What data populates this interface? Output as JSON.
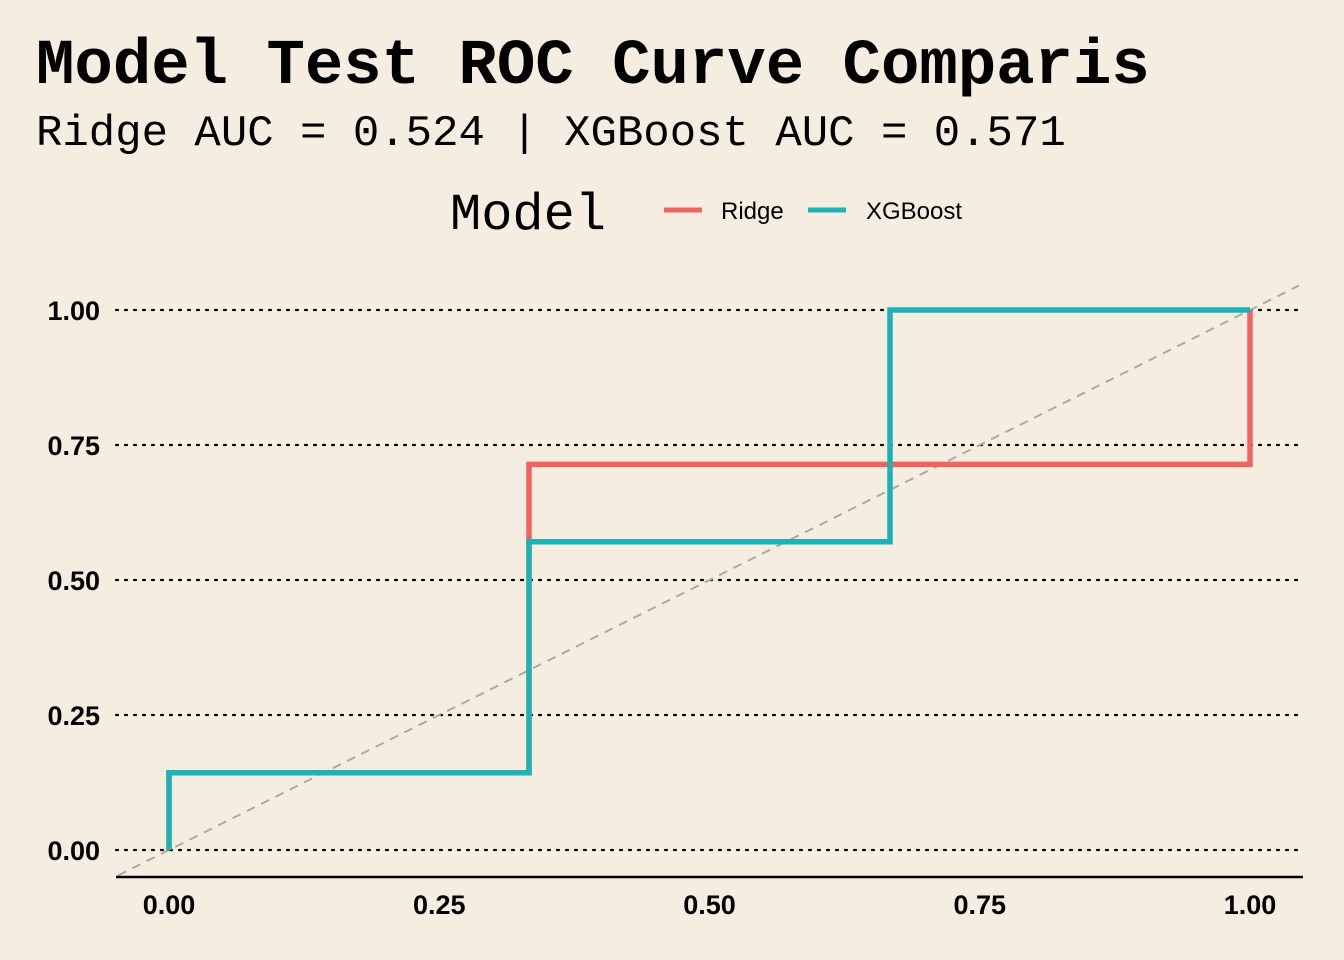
{
  "chart_data": {
    "type": "line",
    "title": "Model Test ROC Curve Comparis",
    "subtitle": "Ridge AUC = 0.524 | XGBoost AUC = 0.571",
    "legend": {
      "title": "Model",
      "position": "top",
      "entries": [
        "Ridge",
        "XGBoost"
      ]
    },
    "xlabel": "",
    "ylabel": "",
    "xlim": [
      0,
      1
    ],
    "ylim": [
      0,
      1
    ],
    "x_ticks": [
      "0.00",
      "0.25",
      "0.50",
      "0.75",
      "1.00"
    ],
    "y_ticks": [
      "0.00",
      "0.25",
      "0.50",
      "0.75",
      "1.00"
    ],
    "grid": "horizontal dotted",
    "diagonal_reference": true,
    "series": [
      {
        "name": "Ridge",
        "color": "#f0645f",
        "x": [
          0,
          0,
          0.333,
          0.333,
          0.333,
          1,
          1
        ],
        "y": [
          0,
          0.143,
          0.143,
          0.571,
          0.714,
          0.714,
          1
        ]
      },
      {
        "name": "XGBoost",
        "color": "#1cb2b6",
        "x": [
          0,
          0,
          0.333,
          0.333,
          0.667,
          0.667,
          1
        ],
        "y": [
          0,
          0.143,
          0.143,
          0.571,
          0.571,
          1,
          1
        ]
      }
    ]
  }
}
